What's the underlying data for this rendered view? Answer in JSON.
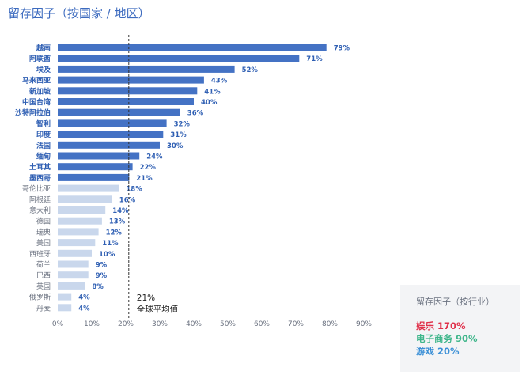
{
  "title": "留存因子（按国家 / 地区）",
  "colors": {
    "highlight": "#4472c4",
    "muted": "#c9d7ec",
    "highlight_label": "#2f5fb3",
    "muted_label": "#6b7280",
    "title": "#3d6bbf"
  },
  "chart_data": {
    "type": "bar",
    "orientation": "horizontal",
    "categories": [
      "越南",
      "阿联酋",
      "埃及",
      "马来西亚",
      "新加坡",
      "中国台湾",
      "沙特阿拉伯",
      "智利",
      "印度",
      "法国",
      "缅甸",
      "土耳其",
      "墨西哥",
      "哥伦比亚",
      "阿根廷",
      "意大利",
      "德国",
      "瑞典",
      "美国",
      "西班牙",
      "荷兰",
      "巴西",
      "英国",
      "俄罗斯",
      "丹麦"
    ],
    "values": [
      79,
      71,
      52,
      43,
      41,
      40,
      36,
      32,
      31,
      30,
      24,
      22,
      21,
      18,
      16,
      14,
      13,
      12,
      11,
      10,
      9,
      9,
      8,
      4,
      4
    ],
    "value_labels": [
      "79%",
      "71%",
      "52%",
      "43%",
      "41%",
      "40%",
      "36%",
      "32%",
      "31%",
      "30%",
      "24%",
      "22%",
      "21%",
      "18%",
      "16%",
      "14%",
      "13%",
      "12%",
      "11%",
      "10%",
      "9%",
      "9%",
      "8%",
      "4%",
      "4%"
    ],
    "highlight_count": 13,
    "x_ticks": [
      "0%",
      "10%",
      "20%",
      "30%",
      "40%",
      "50%",
      "60%",
      "70%",
      "80%",
      "90%"
    ],
    "xlim": [
      0,
      90
    ],
    "reference_line": {
      "value": 21,
      "label_value": "21%",
      "label_text": "全球平均值"
    },
    "xlabel": "",
    "ylabel": "",
    "grid": false
  },
  "side_panel": {
    "title": "留存因子（按行业）",
    "items": [
      {
        "label": "娱乐 170%",
        "color": "#e0314b"
      },
      {
        "label": "电子商务 90%",
        "color": "#3fb68b"
      },
      {
        "label": "游戏 20%",
        "color": "#3a8fd6"
      }
    ]
  }
}
